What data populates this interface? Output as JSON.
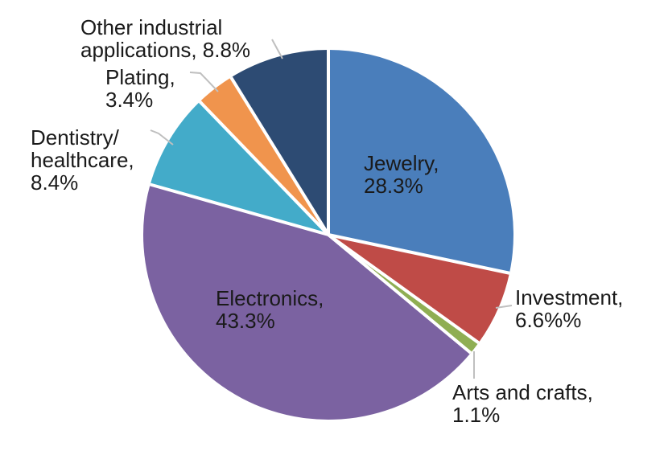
{
  "chart_data": {
    "type": "pie",
    "title": "",
    "unit": "%",
    "direction": "clockwise",
    "start_angle_deg": 0,
    "legend": "none",
    "background": "#FFFFFF",
    "label_text_color": "#1A1A1A",
    "separator_color": "#FFFFFF",
    "leader_line_color": "#BFBFBF",
    "slices": [
      {
        "id": "jewelry",
        "label": "Jewelry",
        "value": 28.3,
        "lines": [
          "Jewelry,",
          "28.3%"
        ],
        "color": "#4A7EBB",
        "label_placement": "inside"
      },
      {
        "id": "investment",
        "label": "Investment",
        "value": 6.6,
        "lines": [
          "Investment,",
          "6.6%%"
        ],
        "color": "#BF4B47",
        "label_placement": "outside"
      },
      {
        "id": "arts_and_crafts",
        "label": "Arts and crafts",
        "value": 1.1,
        "lines": [
          "Arts and crafts,",
          "1.1%"
        ],
        "color": "#8FAE53",
        "label_placement": "outside"
      },
      {
        "id": "electronics",
        "label": "Electronics",
        "value": 43.3,
        "lines": [
          "Electronics,",
          "43.3%"
        ],
        "color": "#7B62A1",
        "label_placement": "inside"
      },
      {
        "id": "dentistry_healthcare",
        "label": "Dentistry/healthcare",
        "value": 8.4,
        "lines": [
          "Dentistry/",
          "healthcare,",
          "8.4%"
        ],
        "color": "#43ABC9",
        "label_placement": "outside"
      },
      {
        "id": "plating",
        "label": "Plating",
        "value": 3.4,
        "lines": [
          "Plating,",
          "3.4%"
        ],
        "color": "#F0944D",
        "label_placement": "outside"
      },
      {
        "id": "other_industrial",
        "label": "Other industrial applications",
        "value": 8.8,
        "lines": [
          "Other industrial",
          "applications, 8.8%"
        ],
        "color": "#2D4B73",
        "label_placement": "outside"
      }
    ]
  }
}
